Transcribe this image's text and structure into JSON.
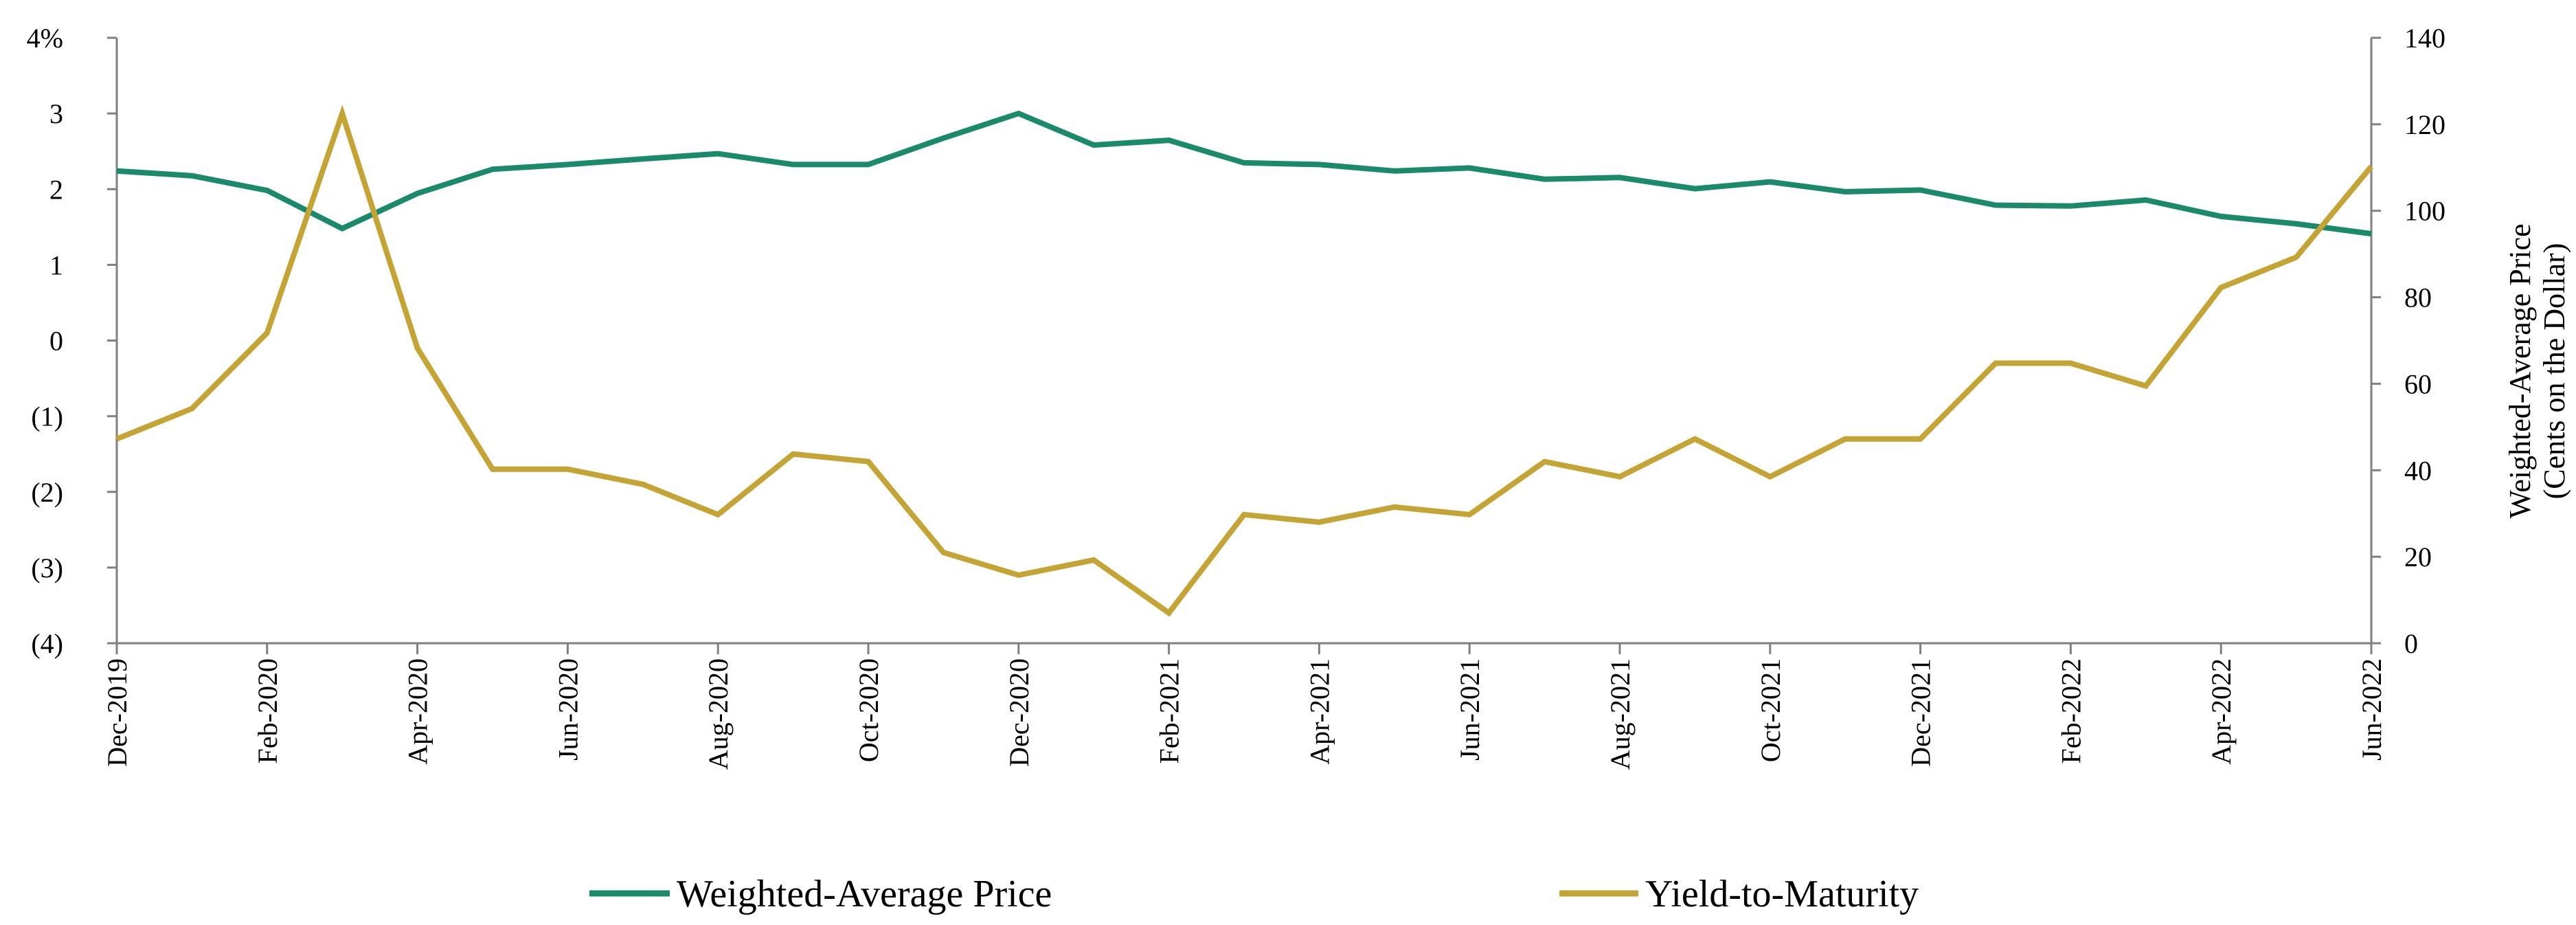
{
  "chart_data": {
    "type": "line",
    "categories": [
      "Dec-2019",
      "Jan-2020",
      "Feb-2020",
      "Mar-2020",
      "Apr-2020",
      "May-2020",
      "Jun-2020",
      "Jul-2020",
      "Aug-2020",
      "Sep-2020",
      "Oct-2020",
      "Nov-2020",
      "Dec-2020",
      "Jan-2021",
      "Feb-2021",
      "Mar-2021",
      "Apr-2021",
      "May-2021",
      "Jun-2021",
      "Jul-2021",
      "Aug-2021",
      "Sep-2021",
      "Oct-2021",
      "Nov-2021",
      "Dec-2021",
      "Jan-2022",
      "Feb-2022",
      "Mar-2022",
      "Apr-2022",
      "May-2022",
      "Jun-2022"
    ],
    "x_tick_labels": [
      "Dec-2019",
      "Feb-2020",
      "Apr-2020",
      "Jun-2020",
      "Aug-2020",
      "Oct-2020",
      "Dec-2020",
      "Feb-2021",
      "Apr-2021",
      "Jun-2021",
      "Aug-2021",
      "Oct-2021",
      "Dec-2021",
      "Feb-2022",
      "Apr-2022",
      "Jun-2022"
    ],
    "y_left": {
      "ylim": [
        -4,
        4
      ],
      "tick_labels": [
        "4%",
        "3",
        "2",
        "1",
        "0",
        "(1)",
        "(2)",
        "(3)",
        "(4)"
      ]
    },
    "y_right": {
      "ylim": [
        0,
        140
      ],
      "tick_labels": [
        "140",
        "120",
        "100",
        "80",
        "60",
        "40",
        "20",
        "0"
      ],
      "label_line1": "Weighted-Average Price",
      "label_line2": "(Cents on the Dollar)"
    },
    "series": [
      {
        "name": "Weighted-Average Price",
        "axis": "right",
        "color": "#1b8a6b",
        "values": [
          109.2,
          108.1,
          104.7,
          95.9,
          104.0,
          109.6,
          110.7,
          112.0,
          113.2,
          110.7,
          110.7,
          116.8,
          122.5,
          115.2,
          116.3,
          111.1,
          110.7,
          109.2,
          109.9,
          107.3,
          107.7,
          105.1,
          106.7,
          104.4,
          104.8,
          101.3,
          101.1,
          102.5,
          98.7,
          97.0,
          94.7
        ]
      },
      {
        "name": "Yield-to-Maturity",
        "axis": "left",
        "color": "#c4a435",
        "values": [
          -1.3,
          -0.9,
          0.1,
          3.0,
          -0.1,
          -1.7,
          -1.7,
          -1.9,
          -2.3,
          -1.5,
          -1.6,
          -2.8,
          -3.1,
          -2.9,
          -3.6,
          -2.3,
          -2.4,
          -2.2,
          -2.3,
          -1.6,
          -1.8,
          -1.3,
          -1.8,
          -1.3,
          -1.3,
          -0.3,
          -0.3,
          -0.6,
          0.7,
          1.1,
          2.3
        ]
      }
    ],
    "legend": {
      "placement": "bottom"
    },
    "grid": false
  }
}
